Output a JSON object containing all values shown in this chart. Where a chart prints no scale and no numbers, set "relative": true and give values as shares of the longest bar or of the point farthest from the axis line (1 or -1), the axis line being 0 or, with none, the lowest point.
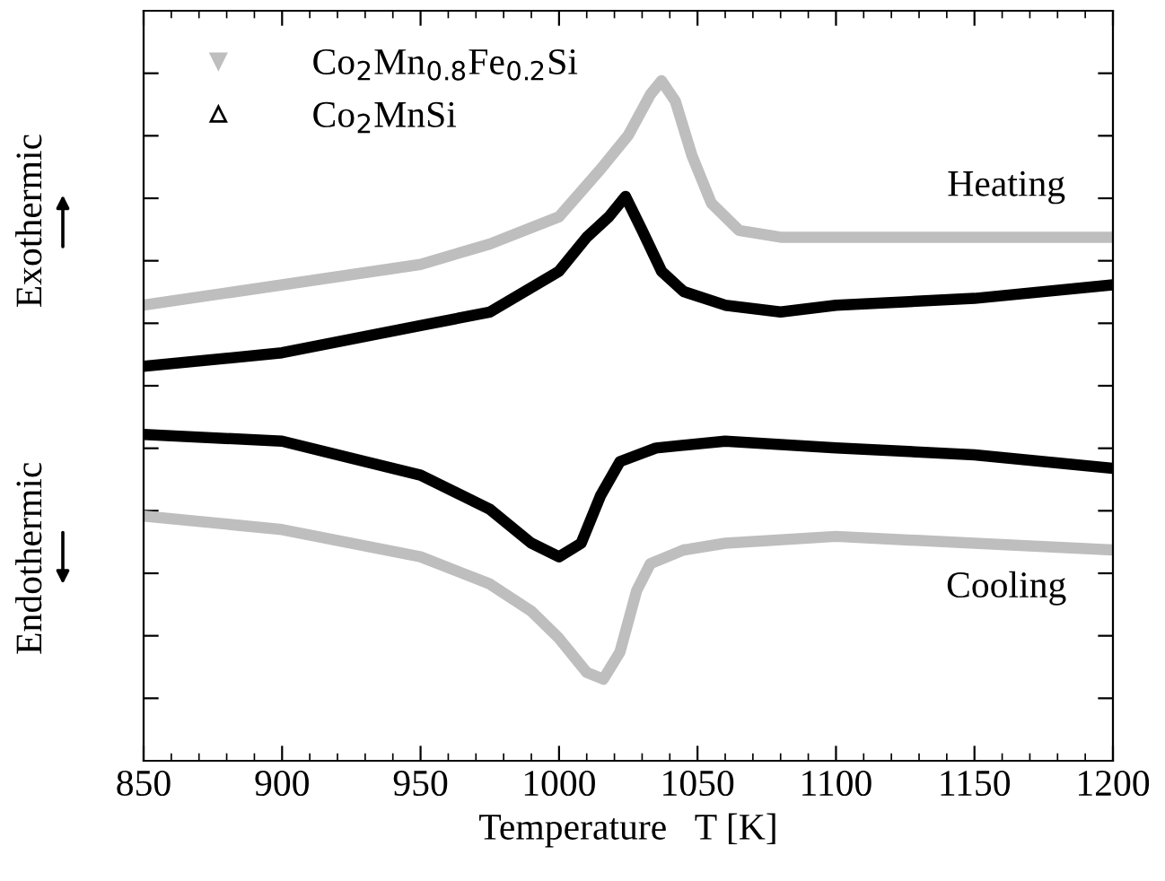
{
  "chart_data": {
    "type": "line",
    "relative": true,
    "xlabel": "Temperature   T [K]",
    "xlim": [
      850,
      1200
    ],
    "xticks": [
      850,
      900,
      950,
      1000,
      1050,
      1100,
      1150,
      1200
    ],
    "tick_labels": "x",
    "legend": "top left",
    "grid": false,
    "x": [
      850,
      900,
      950,
      975,
      1000,
      1015,
      1025,
      1033,
      1037,
      1042,
      1048,
      1055,
      1065,
      1080,
      1100,
      1150,
      1200
    ],
    "series": [
      {
        "name": "Co$_{2}$Mn$_{0.8}$Fe$_{0.2}$Si",
        "color": "#bebebe",
        "values": [
          0.67,
          0.7,
          0.73,
          0.76,
          0.8,
          0.87,
          0.92,
          0.98,
          1.0,
          0.97,
          0.89,
          0.82,
          0.78,
          0.77,
          0.77,
          0.77,
          0.77
        ]
      },
      {
        "name": "Co$_{2}$MnSi",
        "color": "#000000",
        "x": [
          850,
          900,
          950,
          975,
          1000,
          1010,
          1018,
          1024,
          1030,
          1037,
          1045,
          1060,
          1080,
          1100,
          1150,
          1200
        ],
        "values": [
          0.58,
          0.6,
          0.64,
          0.66,
          0.72,
          0.77,
          0.8,
          0.83,
          0.78,
          0.72,
          0.69,
          0.67,
          0.66,
          0.67,
          0.68,
          0.7
        ]
      },
      {
        "color": "#000000",
        "x": [
          850,
          900,
          950,
          975,
          990,
          1000,
          1008,
          1015,
          1022,
          1035,
          1060,
          1100,
          1150,
          1200
        ],
        "values": [
          0.48,
          0.47,
          0.42,
          0.37,
          0.32,
          0.3,
          0.32,
          0.39,
          0.44,
          0.46,
          0.47,
          0.46,
          0.45,
          0.43
        ]
      },
      {
        "color": "#bebebe",
        "x": [
          850,
          900,
          950,
          975,
          990,
          1000,
          1010,
          1016,
          1022,
          1028,
          1033,
          1045,
          1060,
          1100,
          1150,
          1200
        ],
        "values": [
          0.36,
          0.34,
          0.3,
          0.26,
          0.22,
          0.18,
          0.13,
          0.12,
          0.16,
          0.25,
          0.29,
          0.31,
          0.32,
          0.33,
          0.32,
          0.31
        ]
      }
    ],
    "annotations": [
      "Heating",
      "Cooling",
      "Exothermic",
      "Endothermic"
    ]
  }
}
